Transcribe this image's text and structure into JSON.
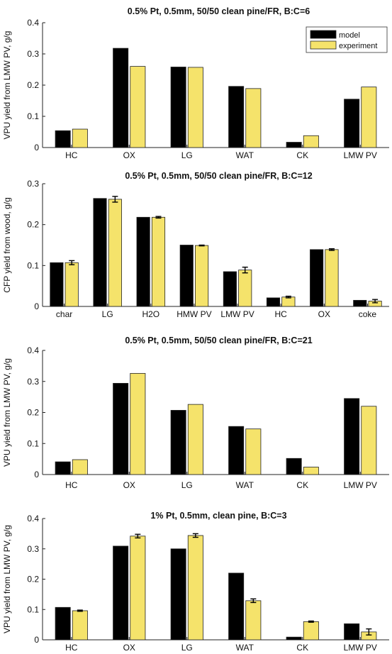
{
  "colors": {
    "model": "#000000",
    "experiment": "#f5e36b",
    "axis": "#222222"
  },
  "chart_data": [
    {
      "type": "bar",
      "title": "0.5% Pt, 0.5mm, 50/50 clean pine/FR, B:C=6",
      "ylabel": "VPU yield from LMW PV, g/g",
      "xlabel": "",
      "ylim": [
        0,
        0.4
      ],
      "yticks": [
        "0",
        "0.1",
        "0.2",
        "0.3",
        "0.4"
      ],
      "ytick_values": [
        0,
        0.1,
        0.2,
        0.3,
        0.4
      ],
      "categories": [
        "HC",
        "OX",
        "LG",
        "WAT",
        "CK",
        "LMW PV"
      ],
      "legend": {
        "placement": "top-right",
        "entries": [
          "model",
          "experiment"
        ]
      },
      "series": [
        {
          "name": "model",
          "values": [
            0.054,
            0.318,
            0.258,
            0.196,
            0.017,
            0.155
          ]
        },
        {
          "name": "experiment",
          "values": [
            0.059,
            0.26,
            0.257,
            0.189,
            0.038,
            0.194
          ]
        }
      ],
      "error_bars": null
    },
    {
      "type": "bar",
      "title": "0.5% Pt, 0.5mm, 50/50 clean pine/FR, B:C=12",
      "ylabel": "CFP yield from wood, g/g",
      "xlabel": "",
      "ylim": [
        0,
        0.3
      ],
      "yticks": [
        "0",
        "0.1",
        "0.2",
        "0.3"
      ],
      "ytick_values": [
        0,
        0.1,
        0.2,
        0.3
      ],
      "categories": [
        "char",
        "LG",
        "H2O",
        "HMW PV",
        "LMW PV",
        "HC",
        "OX",
        "coke"
      ],
      "legend": null,
      "series": [
        {
          "name": "model",
          "values": [
            0.107,
            0.264,
            0.218,
            0.15,
            0.085,
            0.021,
            0.139,
            0.015
          ]
        },
        {
          "name": "experiment",
          "values": [
            0.107,
            0.262,
            0.218,
            0.149,
            0.089,
            0.023,
            0.139,
            0.013
          ]
        }
      ],
      "error_bars": [
        0.005,
        0.007,
        0.002,
        0.001,
        0.007,
        0.002,
        0.002,
        0.004
      ]
    },
    {
      "type": "bar",
      "title": "0.5% Pt, 0.5mm, 50/50 clean pine/FR, B:C=21",
      "ylabel": "VPU yield from LMW PV, g/g",
      "xlabel": "",
      "ylim": [
        0,
        0.4
      ],
      "yticks": [
        "0",
        "0.1",
        "0.2",
        "0.3",
        "0.4"
      ],
      "ytick_values": [
        0,
        0.1,
        0.2,
        0.3,
        0.4
      ],
      "categories": [
        "HC",
        "OX",
        "LG",
        "WAT",
        "CK",
        "LMW PV"
      ],
      "legend": null,
      "series": [
        {
          "name": "model",
          "values": [
            0.041,
            0.294,
            0.207,
            0.155,
            0.052,
            0.245
          ]
        },
        {
          "name": "experiment",
          "values": [
            0.048,
            0.326,
            0.226,
            0.147,
            0.024,
            0.22
          ]
        }
      ],
      "error_bars": null
    },
    {
      "type": "bar",
      "title": "1% Pt, 0.5mm, clean pine, B:C=3",
      "ylabel": "VPU yield from LMW PV, g/g",
      "xlabel": "",
      "ylim": [
        0,
        0.4
      ],
      "yticks": [
        "0",
        "0.1",
        "0.2",
        "0.3",
        "0.4"
      ],
      "ytick_values": [
        0,
        0.1,
        0.2,
        0.3,
        0.4
      ],
      "categories": [
        "HC",
        "OX",
        "LG",
        "WAT",
        "CK",
        "LMW PV"
      ],
      "legend": null,
      "series": [
        {
          "name": "model",
          "values": [
            0.107,
            0.309,
            0.3,
            0.22,
            0.009,
            0.053
          ]
        },
        {
          "name": "experiment",
          "values": [
            0.096,
            0.342,
            0.344,
            0.129,
            0.06,
            0.026
          ]
        }
      ],
      "error_bars": [
        0.002,
        0.006,
        0.006,
        0.006,
        0.002,
        0.01
      ]
    }
  ]
}
